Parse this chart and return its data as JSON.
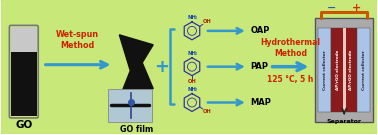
{
  "bg_color": "#c8e87a",
  "arrow_color": "#3399cc",
  "arrow_text_color": "#cc2200",
  "go_label": "GO",
  "go_film_label": "GO film",
  "wet_spun_label": "Wet-spun\nMethod",
  "hydrothermal_label": "Hydrothermal\nMethod",
  "temp_label": "125 °C, 5 h",
  "molecules": [
    "OAP",
    "PAP",
    "MAP"
  ],
  "separator_label": "Separator",
  "plus_label": "+",
  "minus_sign": "−",
  "plus_sign": "+",
  "electrode_labels": [
    "Current collector",
    "AP/rGO electrode",
    "AP/rGO electrode",
    "Current collector"
  ],
  "electrode_colors": [
    "#aac4e8",
    "#8b1a1a",
    "#8b1a1a",
    "#aac4e8"
  ],
  "separator_color": "#e8c8c0",
  "outer_box_color": "#aaaaaa",
  "circuit_color": "#cc5500",
  "vial_liquid_color": "#111111",
  "vial_top_color": "#cccccc",
  "film_color": "#111111",
  "photo_bg": "#b0c8d4",
  "bracket_color": "#3399cc",
  "mol_color": "#333399",
  "mol_nh2_color": "#1144aa",
  "mol_oh_color": "#aa2200"
}
